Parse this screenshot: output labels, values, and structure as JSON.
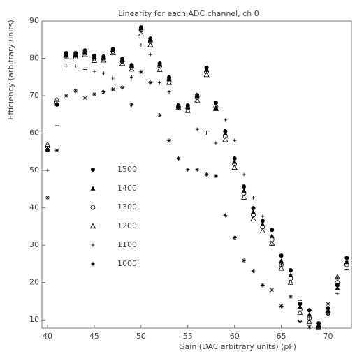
{
  "chart_data": {
    "type": "scatter",
    "title": "Linearity for each ADC channel, ch 0",
    "x_label": "Gain (DAC arbitrary units) (pF)",
    "y_label": "Efficiency (arbitrary units)",
    "xlim": [
      39.4,
      72.5
    ],
    "ylim": [
      7.8,
      90
    ],
    "xticks": [
      40,
      45,
      50,
      55,
      60,
      65,
      70
    ],
    "yticks": [
      10,
      20,
      30,
      40,
      50,
      60,
      70,
      80,
      90
    ],
    "x": [
      40,
      41,
      42,
      43,
      44,
      45,
      46,
      47,
      48,
      49,
      50,
      51,
      52,
      53,
      54,
      55,
      56,
      57,
      58,
      59,
      60,
      61,
      62,
      63,
      64,
      65,
      66,
      67,
      68,
      69,
      70,
      71,
      72
    ],
    "series": [
      {
        "name": "1500",
        "color": "#000000",
        "marker": "filled-circle",
        "values": [
          55.4,
          67.6,
          81.4,
          81.4,
          82.1,
          80.7,
          80.5,
          82.5,
          79.9,
          78.2,
          88.3,
          85.3,
          78.6,
          74.9,
          67.4,
          67.4,
          70.2,
          77.5,
          68.1,
          60.5,
          53.2,
          45.7,
          39.9,
          36.5,
          34.1,
          27.2,
          23.3,
          14.3,
          12.6,
          9.1,
          13.2,
          19.3,
          26.6
        ]
      },
      {
        "name": "1400",
        "color": "#000000",
        "marker": "filled-triangle",
        "values": [
          55.8,
          67.9,
          81.0,
          81.0,
          81.6,
          80.2,
          80.1,
          82.2,
          79.6,
          77.9,
          88.0,
          84.8,
          78.3,
          74.5,
          67.2,
          67.0,
          69.9,
          76.9,
          66.8,
          59.9,
          52.3,
          44.6,
          38.9,
          35.6,
          32.5,
          25.8,
          22.0,
          13.5,
          11.5,
          8.6,
          12.3,
          18.5,
          25.5
        ]
      },
      {
        "name": "1300",
        "color": "#000000",
        "marker": "open-circle",
        "values": [
          56.4,
          68.2,
          80.8,
          80.8,
          81.4,
          79.9,
          79.9,
          81.9,
          79.2,
          77.6,
          87.6,
          84.5,
          77.9,
          74.2,
          67.0,
          66.7,
          69.5,
          76.5,
          67.1,
          59.1,
          51.7,
          43.9,
          38.0,
          34.9,
          31.5,
          24.8,
          21.1,
          12.8,
          10.5,
          8.1,
          11.8,
          20.0,
          24.8
        ]
      },
      {
        "name": "1200",
        "color": "#000000",
        "marker": "open-triangle",
        "values": [
          57.0,
          69.0,
          80.6,
          80.4,
          81.0,
          79.4,
          79.5,
          81.5,
          78.6,
          77.1,
          86.5,
          83.6,
          77.0,
          73.5,
          66.8,
          66.0,
          68.8,
          75.6,
          66.5,
          58.2,
          50.8,
          42.8,
          37.0,
          33.8,
          30.5,
          23.8,
          20.0,
          12.0,
          9.5,
          7.9,
          12.5,
          21.5,
          25.3
        ]
      },
      {
        "name": "1100",
        "color": "#000000",
        "marker": "plus",
        "values": [
          50,
          62,
          77.9,
          77.9,
          77,
          76.5,
          76,
          74.7,
          79,
          75,
          83.6,
          81,
          73.5,
          71,
          66.6,
          66.6,
          61,
          60,
          57.3,
          63.5,
          58,
          48.9,
          42.7,
          37.7,
          30,
          25,
          22.2,
          15.2,
          10.6,
          8,
          11.5,
          17,
          23.6
        ]
      },
      {
        "name": "1000",
        "color": "#000000",
        "marker": "asterisk",
        "values": [
          42.7,
          55.4,
          70,
          71.3,
          69.4,
          70.4,
          71,
          71.7,
          72.2,
          67.6,
          76.4,
          73.5,
          64.8,
          58,
          53.2,
          50.2,
          50.2,
          48.9,
          48.5,
          38,
          32,
          25.9,
          23.1,
          19.3,
          18,
          13.7,
          16.2,
          9.6,
          8.1,
          8,
          14.3,
          21.2,
          26
        ]
      }
    ]
  }
}
